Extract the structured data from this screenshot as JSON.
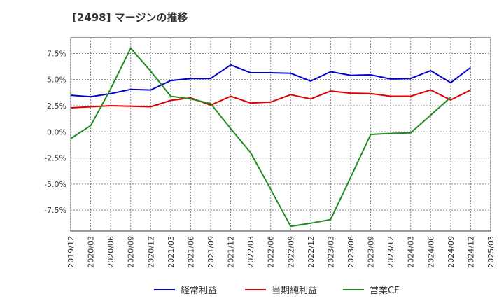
{
  "title": "[2498]  マージンの推移",
  "chart_data": {
    "type": "line",
    "title": "[2498]  マージンの推移",
    "xlabel": "",
    "ylabel": "",
    "x": [
      "2019/12",
      "2020/03",
      "2020/06",
      "2020/09",
      "2020/12",
      "2021/03",
      "2021/06",
      "2021/09",
      "2021/12",
      "2022/03",
      "2022/06",
      "2022/09",
      "2022/12",
      "2023/03",
      "2023/06",
      "2023/09",
      "2023/12",
      "2024/03",
      "2024/06",
      "2024/09",
      "2024/12",
      "2025/03"
    ],
    "ylim": [
      -9.5,
      9.0
    ],
    "yticks": [
      -7.5,
      -5.0,
      -2.5,
      0.0,
      2.5,
      5.0,
      7.5
    ],
    "ytick_labels": [
      "-7.5%",
      "-5.0%",
      "-2.5%",
      "0.0%",
      "2.5%",
      "5.0%",
      "7.5%"
    ],
    "grid": true,
    "legend_position": "bottom",
    "series": [
      {
        "name": "経常利益",
        "color": "#0000cc",
        "values": [
          3.5,
          3.35,
          3.65,
          4.05,
          4.0,
          4.9,
          5.1,
          5.1,
          6.4,
          5.65,
          5.65,
          5.6,
          4.85,
          5.75,
          5.4,
          5.45,
          5.05,
          5.1,
          5.85,
          4.7,
          6.15,
          null
        ]
      },
      {
        "name": "当期純利益",
        "color": "#dd0000",
        "values": [
          2.3,
          2.4,
          2.5,
          2.45,
          2.4,
          3.0,
          3.25,
          2.55,
          3.4,
          2.75,
          2.85,
          3.55,
          3.15,
          3.9,
          3.7,
          3.65,
          3.4,
          3.4,
          4.0,
          3.05,
          4.0,
          null
        ]
      },
      {
        "name": "営業CF",
        "color": "#228b22",
        "values": [
          -0.65,
          0.6,
          4.1,
          8.0,
          5.8,
          3.4,
          3.15,
          2.7,
          0.3,
          -2.0,
          -5.5,
          -9.05,
          -8.75,
          -8.4,
          -4.35,
          -0.25,
          -0.15,
          -0.1,
          1.6,
          3.3,
          null,
          null
        ]
      }
    ]
  }
}
